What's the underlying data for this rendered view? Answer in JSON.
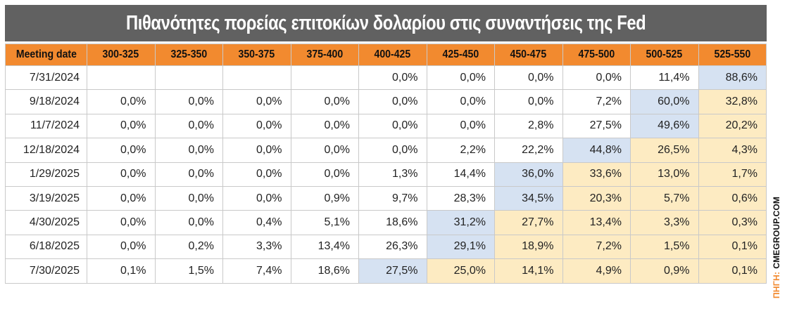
{
  "title": "Πιθανότητες πορείας επιτοκίων δολαρίου στις συναντήσεις της Fed",
  "source_label": "ΠΗΓΗ:",
  "source_value": "CMEGROUP.COM",
  "colors": {
    "title_bg": "#616161",
    "header_bg": "#f28a2f",
    "max_cell": "#d6e2f2",
    "below_max_cell": "#fdebc2"
  },
  "chart_data": {
    "type": "table",
    "title": "Πιθανότητες πορείας επιτοκίων δολαρίου στις συναντήσεις της Fed",
    "columns": [
      "Meeting date",
      "300-325",
      "325-350",
      "350-375",
      "375-400",
      "400-425",
      "425-450",
      "450-475",
      "475-500",
      "500-525",
      "525-550"
    ],
    "rows": [
      {
        "date": "7/31/2024",
        "values": [
          "",
          "",
          "",
          "",
          "0,0%",
          "0,0%",
          "0,0%",
          "0,0%",
          "11,4%",
          "88,6%"
        ],
        "max_index": 9
      },
      {
        "date": "9/18/2024",
        "values": [
          "0,0%",
          "0,0%",
          "0,0%",
          "0,0%",
          "0,0%",
          "0,0%",
          "0,0%",
          "7,2%",
          "60,0%",
          "32,8%"
        ],
        "max_index": 8
      },
      {
        "date": "11/7/2024",
        "values": [
          "0,0%",
          "0,0%",
          "0,0%",
          "0,0%",
          "0,0%",
          "0,0%",
          "2,8%",
          "27,5%",
          "49,6%",
          "20,2%"
        ],
        "max_index": 8
      },
      {
        "date": "12/18/2024",
        "values": [
          "0,0%",
          "0,0%",
          "0,0%",
          "0,0%",
          "0,0%",
          "2,2%",
          "22,2%",
          "44,8%",
          "26,5%",
          "4,3%"
        ],
        "max_index": 7
      },
      {
        "date": "1/29/2025",
        "values": [
          "0,0%",
          "0,0%",
          "0,0%",
          "0,0%",
          "1,3%",
          "14,4%",
          "36,0%",
          "33,6%",
          "13,0%",
          "1,7%"
        ],
        "max_index": 6
      },
      {
        "date": "3/19/2025",
        "values": [
          "0,0%",
          "0,0%",
          "0,0%",
          "0,9%",
          "9,7%",
          "28,3%",
          "34,5%",
          "20,3%",
          "5,7%",
          "0,6%"
        ],
        "max_index": 6
      },
      {
        "date": "4/30/2025",
        "values": [
          "0,0%",
          "0,0%",
          "0,4%",
          "5,1%",
          "18,6%",
          "31,2%",
          "27,7%",
          "13,4%",
          "3,3%",
          "0,3%"
        ],
        "max_index": 5
      },
      {
        "date": "6/18/2025",
        "values": [
          "0,0%",
          "0,2%",
          "3,3%",
          "13,4%",
          "26,3%",
          "29,1%",
          "18,9%",
          "7,2%",
          "1,5%",
          "0,1%"
        ],
        "max_index": 5
      },
      {
        "date": "7/30/2025",
        "values": [
          "0,1%",
          "1,5%",
          "7,4%",
          "18,6%",
          "27,5%",
          "25,0%",
          "14,1%",
          "4,9%",
          "0,9%",
          "0,1%"
        ],
        "max_index": 4
      }
    ]
  }
}
